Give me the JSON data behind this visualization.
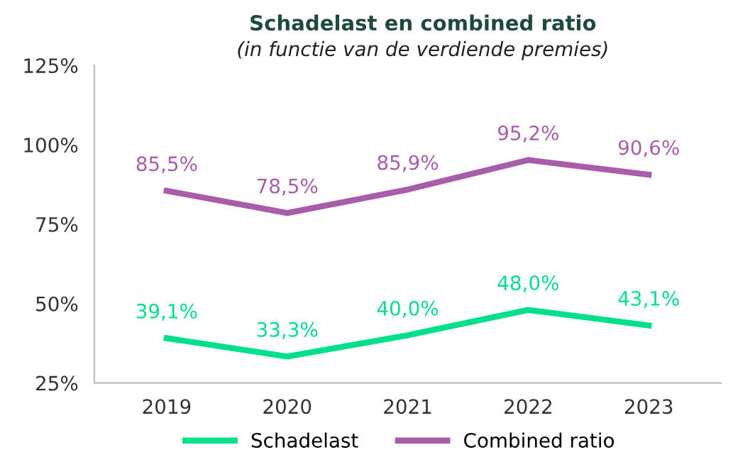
{
  "chart_data": {
    "type": "line",
    "title": "Schadelast en combined ratio",
    "subtitle": "(in functie van de verdiende premies)",
    "categories": [
      "2019",
      "2020",
      "2021",
      "2022",
      "2023"
    ],
    "series": [
      {
        "name": "Schadelast",
        "color": "#00e08a",
        "values": [
          39.1,
          33.3,
          40.0,
          48.0,
          43.1
        ],
        "value_labels": [
          "39,1%",
          "33,3%",
          "40,0%",
          "48,0%",
          "43,1%"
        ]
      },
      {
        "name": "Combined ratio",
        "color": "#a85ca9",
        "values": [
          85.5,
          78.5,
          85.9,
          95.2,
          90.6
        ],
        "value_labels": [
          "85,5%",
          "78,5%",
          "85,9%",
          "95,2%",
          "90,6%"
        ]
      }
    ],
    "ylim": [
      25,
      125
    ],
    "yticks": [
      {
        "value": 25,
        "label": "25%"
      },
      {
        "value": 50,
        "label": "50%"
      },
      {
        "value": 75,
        "label": "75%"
      },
      {
        "value": 100,
        "label": "100%"
      },
      {
        "value": 125,
        "label": "125%"
      }
    ],
    "grid": false,
    "legend": "bottom",
    "marker": "none",
    "line_style": "solid"
  }
}
